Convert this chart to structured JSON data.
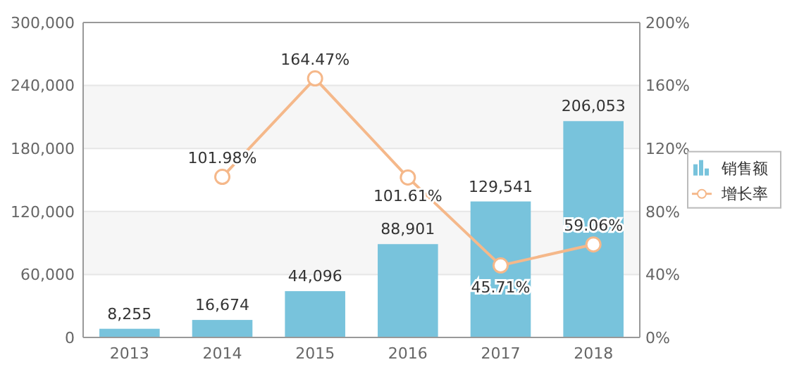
{
  "chart_data": {
    "type": "bar",
    "categories": [
      "2013",
      "2014",
      "2015",
      "2016",
      "2017",
      "2018"
    ],
    "series": [
      {
        "name": "销售额",
        "color": "#78c3dc",
        "values": [
          8255,
          16674,
          44096,
          88901,
          129541,
          206053
        ],
        "value_labels": [
          "8,255",
          "16,674",
          "44,096",
          "88,901",
          "129,541",
          "206,053"
        ]
      },
      {
        "name": "增长率",
        "type": "line",
        "axis": "y2",
        "color": "#f5b88a",
        "marker": "circle",
        "values": [
          null,
          101.98,
          164.47,
          101.61,
          45.71,
          59.06
        ],
        "value_labels": [
          null,
          "101.98%",
          "164.47%",
          "101.61%",
          "45.71%",
          "59.06%"
        ]
      }
    ],
    "ylim": [
      0,
      300000
    ],
    "yticks": [
      {
        "value": 0,
        "label": "0"
      },
      {
        "value": 60000,
        "label": "60,000"
      },
      {
        "value": 120000,
        "label": "120,000"
      },
      {
        "value": 180000,
        "label": "180,000"
      },
      {
        "value": 240000,
        "label": "240,000"
      },
      {
        "value": 300000,
        "label": "300,000"
      }
    ],
    "y2lim": [
      0,
      200
    ],
    "y2ticks": [
      {
        "value": 0,
        "label": "0%"
      },
      {
        "value": 40,
        "label": "40%"
      },
      {
        "value": 80,
        "label": "80%"
      },
      {
        "value": 120,
        "label": "120%"
      },
      {
        "value": 160,
        "label": "160%"
      },
      {
        "value": 200,
        "label": "200%"
      }
    ],
    "grid": "y",
    "legend": "right"
  }
}
